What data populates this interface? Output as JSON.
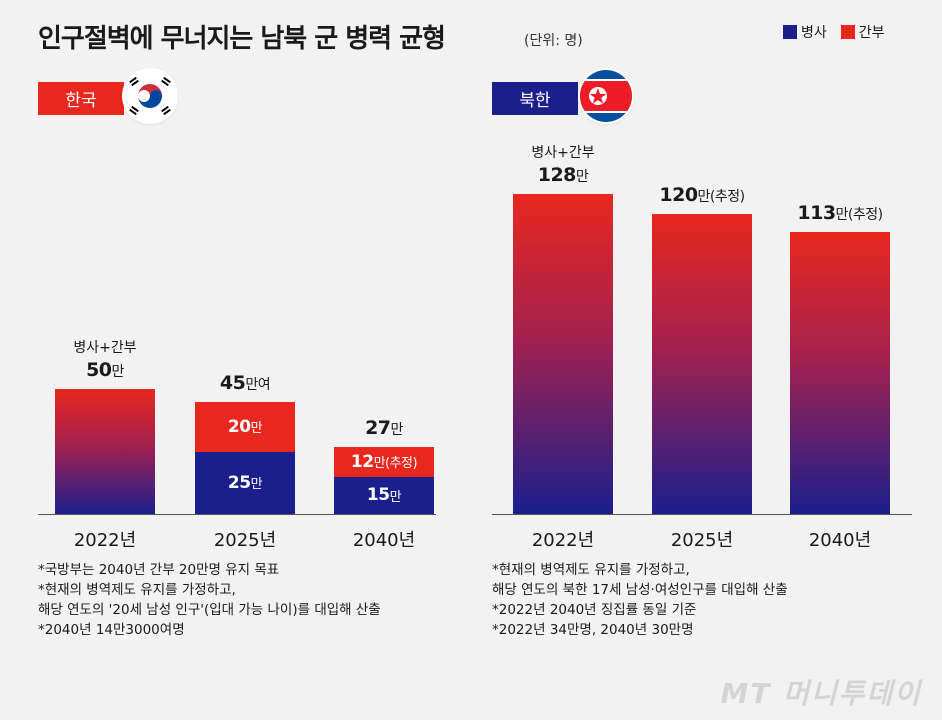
{
  "header": {
    "title": "인구절벽에 무너지는 남북 군 병력 균형",
    "unit": "(단위: 명)"
  },
  "legend": [
    {
      "label": "병사",
      "color": "#1a1f8c"
    },
    {
      "label": "간부",
      "color": "#e8271e"
    }
  ],
  "colors": {
    "soldier": "#1a1f8c",
    "officer": "#e8271e",
    "tag_south": "#e8271e",
    "tag_north": "#1a1f8c"
  },
  "south": {
    "label": "한국",
    "flag_icon": "south-korea-flag-icon",
    "years": [
      "2022년",
      "2025년",
      "2040년"
    ],
    "totals": [
      "50만",
      "45만여",
      "27만"
    ],
    "total_sublabel": "병사+간부",
    "notes": [
      "*국방부는 2040년 간부 20만명 유지 목표",
      "*현재의 병역제도 유지를 가정하고,",
      "해당 연도의 '20세 남성 인구'(입대 가능 나이)를 대입해 산출",
      "*2040년 14만3000여명"
    ]
  },
  "north": {
    "label": "북한",
    "flag_icon": "north-korea-flag-icon",
    "years": [
      "2022년",
      "2025년",
      "2040년"
    ],
    "totals": [
      "128만",
      "120만(추정)",
      "113만(추정)"
    ],
    "total_sublabel": "병사+간부",
    "notes": [
      "*현재의 병역제도 유지를 가정하고,",
      "해당 연도의 북한 17세 남성·여성인구를 대입해 산출",
      "*2022년 2040년 징집률 동일 기준",
      "*2022년 34만명, 2040년 30만명"
    ]
  },
  "chart_data": [
    {
      "type": "bar",
      "title": "한국",
      "categories": [
        "2022년",
        "2025년",
        "2040년"
      ],
      "series": [
        {
          "name": "병사",
          "values": [
            null,
            25,
            15
          ]
        },
        {
          "name": "간부",
          "values": [
            null,
            20,
            12
          ]
        }
      ],
      "totals": [
        50,
        45,
        27
      ],
      "segment_labels": {
        "병사": [
          "",
          "25만",
          "15만"
        ],
        "간부": [
          "",
          "20만",
          "12만(추정)"
        ]
      },
      "ylim": [
        0,
        130
      ]
    },
    {
      "type": "bar",
      "title": "북한",
      "categories": [
        "2022년",
        "2025년",
        "2040년"
      ],
      "series": [
        {
          "name": "병사+간부",
          "values": [
            128,
            120,
            113
          ]
        }
      ],
      "totals": [
        128,
        120,
        113
      ],
      "ylim": [
        0,
        130
      ]
    }
  ],
  "watermark": "MT 머니투데이"
}
